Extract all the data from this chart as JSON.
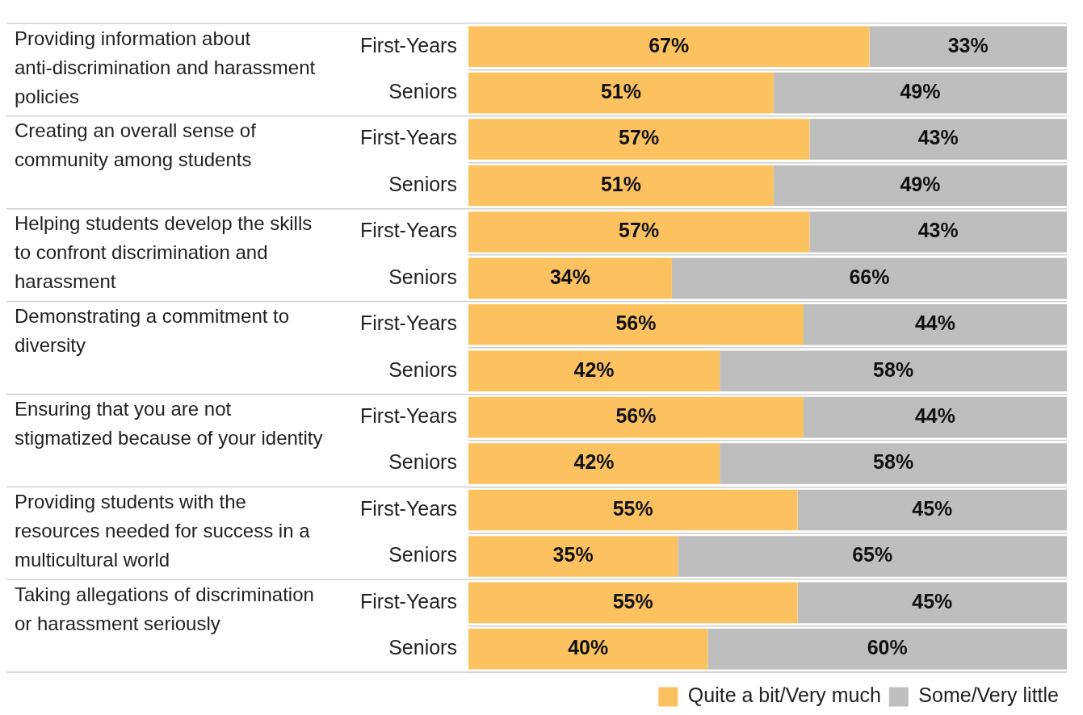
{
  "chart_data": {
    "type": "bar",
    "orientation": "horizontal",
    "stacked": true,
    "grid": "y",
    "legend": "bottom right",
    "tick_labels": "y",
    "categories": [
      "First-Years",
      "Seniors",
      "First-Years",
      "Seniors",
      "First-Years",
      "Seniors",
      "First-Years",
      "Seniors",
      "First-Years",
      "Seniors",
      "First-Years",
      "Seniors",
      "First-Years",
      "Seniors"
    ],
    "annotations": [
      "Providing information about anti-discrimination and harassment policies",
      "Creating an overall sense of community among students",
      "Helping students develop the skills to confront discrimination and harassment",
      "Demonstrating a commitment to diversity",
      "Ensuring that you are not stigmatized because of your identity",
      "Providing students with the resources needed for success in a multicultural world",
      "Taking allegations of discrimination or harassment seriously"
    ],
    "series": [
      {
        "name": "Quite a bit/Very much",
        "color": "#fcc25f",
        "values": [
          67,
          51,
          57,
          51,
          57,
          34,
          56,
          42,
          56,
          42,
          55,
          35,
          55,
          40
        ],
        "value_labels": [
          "67%",
          "51%",
          "57%",
          "51%",
          "57%",
          "34%",
          "56%",
          "42%",
          "56%",
          "42%",
          "55%",
          "35%",
          "55%",
          "40%"
        ]
      },
      {
        "name": "Some/Very little",
        "color": "#bfbebf",
        "values": [
          33,
          49,
          43,
          49,
          43,
          66,
          44,
          58,
          44,
          58,
          45,
          65,
          45,
          60
        ],
        "value_labels": [
          "33%",
          "49%",
          "43%",
          "49%",
          "43%",
          "66%",
          "44%",
          "58%",
          "44%",
          "58%",
          "45%",
          "65%",
          "45%",
          "60%"
        ]
      }
    ]
  }
}
